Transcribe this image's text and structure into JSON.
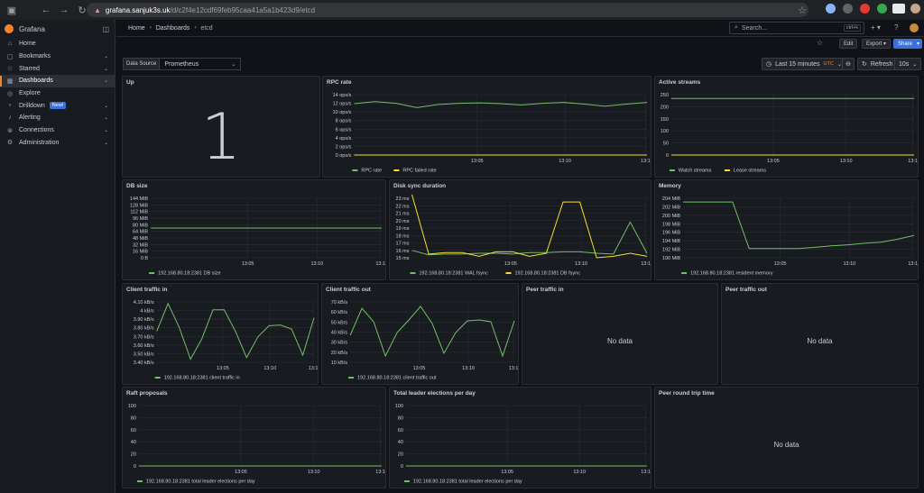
{
  "browser": {
    "url_domain": "grafana.sanjuk3s.uk",
    "url_path": "/d/c2f4e12cdf69feb95caa41a5a1b423d9/etcd"
  },
  "sidebar": {
    "brand": "Grafana",
    "items": [
      {
        "label": "Home",
        "icon": "home-icon",
        "glyph": "⌂",
        "chevron": false
      },
      {
        "label": "Bookmarks",
        "icon": "bookmark-icon",
        "glyph": "▢",
        "chevron": true
      },
      {
        "label": "Starred",
        "icon": "star-icon",
        "glyph": "☆",
        "chevron": true
      },
      {
        "label": "Dashboards",
        "icon": "dashboard-icon",
        "glyph": "▦",
        "chevron": true,
        "active": true
      },
      {
        "label": "Explore",
        "icon": "compass-icon",
        "glyph": "◎",
        "chevron": false
      },
      {
        "label": "Drilldown",
        "icon": "microphone-icon",
        "glyph": "♆",
        "chevron": true,
        "badge": "New!"
      },
      {
        "label": "Alerting",
        "icon": "bell-icon",
        "glyph": "♪",
        "chevron": true
      },
      {
        "label": "Connections",
        "icon": "plug-icon",
        "glyph": "⊛",
        "chevron": true
      },
      {
        "label": "Administration",
        "icon": "gear-icon",
        "glyph": "⚙",
        "chevron": true
      }
    ]
  },
  "breadcrumb": {
    "home": "Home",
    "dashboards": "Dashboards",
    "current": "etcd"
  },
  "search": {
    "placeholder": "Search...",
    "shortcut": "ctrl+k"
  },
  "toolbar": {
    "edit": "Edit",
    "export": "Export",
    "share": "Share"
  },
  "variables": {
    "label": "Data Source",
    "value": "Prometheus"
  },
  "time": {
    "range": "Last 15 minutes",
    "tz": "UTC",
    "refresh": "Refresh",
    "interval": "10s"
  },
  "colors": {
    "green": "#73bf69",
    "yellow": "#fade2a",
    "accent": "#3d71d9"
  },
  "panels": {
    "up": {
      "title": "Up",
      "value": "1"
    },
    "rpc_rate": {
      "title": "RPC rate"
    },
    "active_streams": {
      "title": "Active streams"
    },
    "db_size": {
      "title": "DB size"
    },
    "disk_sync": {
      "title": "Disk sync duration"
    },
    "memory": {
      "title": "Memory"
    },
    "client_in": {
      "title": "Client traffic in"
    },
    "client_out": {
      "title": "Client traffic out"
    },
    "peer_in": {
      "title": "Peer traffic in",
      "empty": "No data"
    },
    "peer_out": {
      "title": "Peer traffic out",
      "empty": "No data"
    },
    "raft": {
      "title": "Raft proposals"
    },
    "leader": {
      "title": "Total leader elections per day"
    },
    "peer_rtt": {
      "title": "Peer round trip time",
      "empty": "No data"
    }
  },
  "chart_data": [
    {
      "id": "rpc_rate",
      "type": "line",
      "ylabels": [
        "14 ops/s",
        "12 ops/s",
        "10 ops/s",
        "8 ops/s",
        "6 ops/s",
        "4 ops/s",
        "2 ops/s",
        "0 ops/s"
      ],
      "ylim": [
        0,
        14
      ],
      "xticks": [
        "13:05",
        "13:10",
        "13:1"
      ],
      "x": [
        0,
        1,
        2,
        3,
        4,
        5,
        6,
        7,
        8,
        9,
        10,
        11,
        12,
        13,
        14
      ],
      "series": [
        {
          "name": "RPC rate",
          "color": "#73bf69",
          "values": [
            11.9,
            12.4,
            12,
            11,
            11.7,
            12,
            12.1,
            11.9,
            11.6,
            12,
            12.2,
            11.8,
            11.3,
            11.8,
            12.2
          ]
        },
        {
          "name": "RPC failed rate",
          "color": "#fade2a",
          "values": [
            0,
            0,
            0,
            0,
            0,
            0,
            0,
            0,
            0,
            0,
            0,
            0,
            0,
            0,
            0
          ]
        }
      ]
    },
    {
      "id": "active_streams",
      "type": "line",
      "ylabels": [
        "250",
        "200",
        "150",
        "100",
        "50",
        "0"
      ],
      "ylim": [
        0,
        250
      ],
      "xticks": [
        "13:05",
        "13:10",
        "13:1"
      ],
      "x": [
        0,
        14
      ],
      "series": [
        {
          "name": "Watch streams",
          "color": "#73bf69",
          "values": [
            234,
            234
          ]
        },
        {
          "name": "Lease streams",
          "color": "#fade2a",
          "values": [
            0,
            0
          ]
        }
      ]
    },
    {
      "id": "db_size",
      "type": "line",
      "ylabels": [
        "144 MiB",
        "128 MiB",
        "112 MiB",
        "96 MiB",
        "80 MiB",
        "64 MiB",
        "48 MiB",
        "32 MiB",
        "16 MiB",
        "0 B"
      ],
      "ylim": [
        0,
        144
      ],
      "xticks": [
        "13:05",
        "13:10",
        "13:1"
      ],
      "x": [
        0,
        14
      ],
      "series": [
        {
          "name": "192.168.80.18:2381 DB size",
          "color": "#73bf69",
          "values": [
            72,
            72
          ]
        }
      ]
    },
    {
      "id": "disk_sync",
      "type": "line",
      "ylabels": [
        "23 ms",
        "22 ms",
        "21 ms",
        "20 ms",
        "19 ms",
        "18 ms",
        "17 ms",
        "16 ms",
        "15 ms"
      ],
      "ylim": [
        15,
        23
      ],
      "xticks": [
        "13:05",
        "13:10",
        "13:1"
      ],
      "x": [
        0,
        1,
        2,
        3,
        4,
        5,
        6,
        7,
        8,
        9,
        10,
        11,
        12,
        13,
        14
      ],
      "series": [
        {
          "name": "192.168.80.18:2381 WAL fsync",
          "color": "#73bf69",
          "values": [
            16,
            15.4,
            15.5,
            15.5,
            15.6,
            15.6,
            15.5,
            15.7,
            15.7,
            15.8,
            15.8,
            15.6,
            15.5,
            19.8,
            15.6
          ]
        },
        {
          "name": "192.168.80.18:2381 DB fsync",
          "color": "#fade2a",
          "values": [
            23.5,
            15.5,
            15.7,
            15.7,
            15.2,
            15.8,
            15.8,
            15.2,
            15.6,
            22.5,
            22.5,
            15,
            15.2,
            15.6,
            15.2
          ]
        }
      ]
    },
    {
      "id": "memory",
      "type": "line",
      "ylabels": [
        "204 MiB",
        "202 MiB",
        "200 MiB",
        "198 MiB",
        "196 MiB",
        "194 MiB",
        "192 MiB",
        "190 MiB"
      ],
      "ylim": [
        189,
        205
      ],
      "xticks": [
        "13:05",
        "13:10",
        "13:1"
      ],
      "x": [
        0,
        1,
        2,
        3,
        4,
        5,
        6,
        7,
        8,
        9,
        10,
        11,
        12,
        13,
        14
      ],
      "series": [
        {
          "name": "192.168.80.18:2381 resident memory",
          "color": "#73bf69",
          "values": [
            204,
            204,
            204,
            204,
            191.5,
            191.5,
            191.5,
            191.5,
            191.8,
            192.2,
            192.5,
            192.9,
            193.2,
            194,
            195
          ]
        }
      ]
    },
    {
      "id": "client_in",
      "type": "line",
      "ylabels": [
        "4.10 kB/s",
        "4 kB/s",
        "3.90 kB/s",
        "3.80 kB/s",
        "3.70 kB/s",
        "3.60 kB/s",
        "3.50 kB/s",
        "3.40 kB/s"
      ],
      "ylim": [
        3.36,
        4.12
      ],
      "xticks": [
        "13:05",
        "13:10",
        "13:1"
      ],
      "x": [
        0,
        1,
        2,
        3,
        4,
        5,
        6,
        7,
        8,
        9,
        10,
        11,
        12,
        13,
        14
      ],
      "series": [
        {
          "name": "192.168.80.18:2381 client traffic in",
          "color": "#73bf69",
          "values": [
            3.75,
            4.1,
            3.8,
            3.4,
            3.65,
            4.02,
            4.02,
            3.75,
            3.42,
            3.68,
            3.82,
            3.83,
            3.78,
            3.45,
            3.92
          ]
        }
      ]
    },
    {
      "id": "client_out",
      "type": "line",
      "ylabels": [
        "70 kB/s",
        "60 kB/s",
        "50 kB/s",
        "40 kB/s",
        "30 kB/s",
        "20 kB/s",
        "10 kB/s"
      ],
      "ylim": [
        5,
        72
      ],
      "xticks": [
        "13:05",
        "13:10",
        "13:1"
      ],
      "x": [
        0,
        1,
        2,
        3,
        4,
        5,
        6,
        7,
        8,
        9,
        10,
        11,
        12,
        13,
        14
      ],
      "series": [
        {
          "name": "192.168.80.18:2381 client traffic out",
          "color": "#73bf69",
          "values": [
            35,
            65,
            50,
            12,
            38,
            52,
            67,
            48,
            15,
            38,
            51,
            52,
            50,
            12,
            51
          ]
        }
      ]
    },
    {
      "id": "raft",
      "type": "line",
      "ylabels": [
        "100",
        "80",
        "60",
        "40",
        "20",
        "0"
      ],
      "ylim": [
        0,
        100
      ],
      "xticks": [
        "13:05",
        "13:10",
        "13:1"
      ],
      "x": [
        0,
        14
      ],
      "series": [
        {
          "name": "192.168.80.18:2381 total leader elections per day",
          "color": "#73bf69",
          "values": [
            0,
            0
          ]
        }
      ]
    },
    {
      "id": "leader",
      "type": "line",
      "ylabels": [
        "100",
        "80",
        "60",
        "40",
        "20",
        "0"
      ],
      "ylim": [
        0,
        100
      ],
      "xticks": [
        "13:05",
        "13:10",
        "13:1"
      ],
      "x": [
        0,
        14
      ],
      "series": [
        {
          "name": "192.168.80.18:2381 total leader elections per day",
          "color": "#73bf69",
          "values": [
            0,
            0
          ]
        }
      ]
    }
  ]
}
